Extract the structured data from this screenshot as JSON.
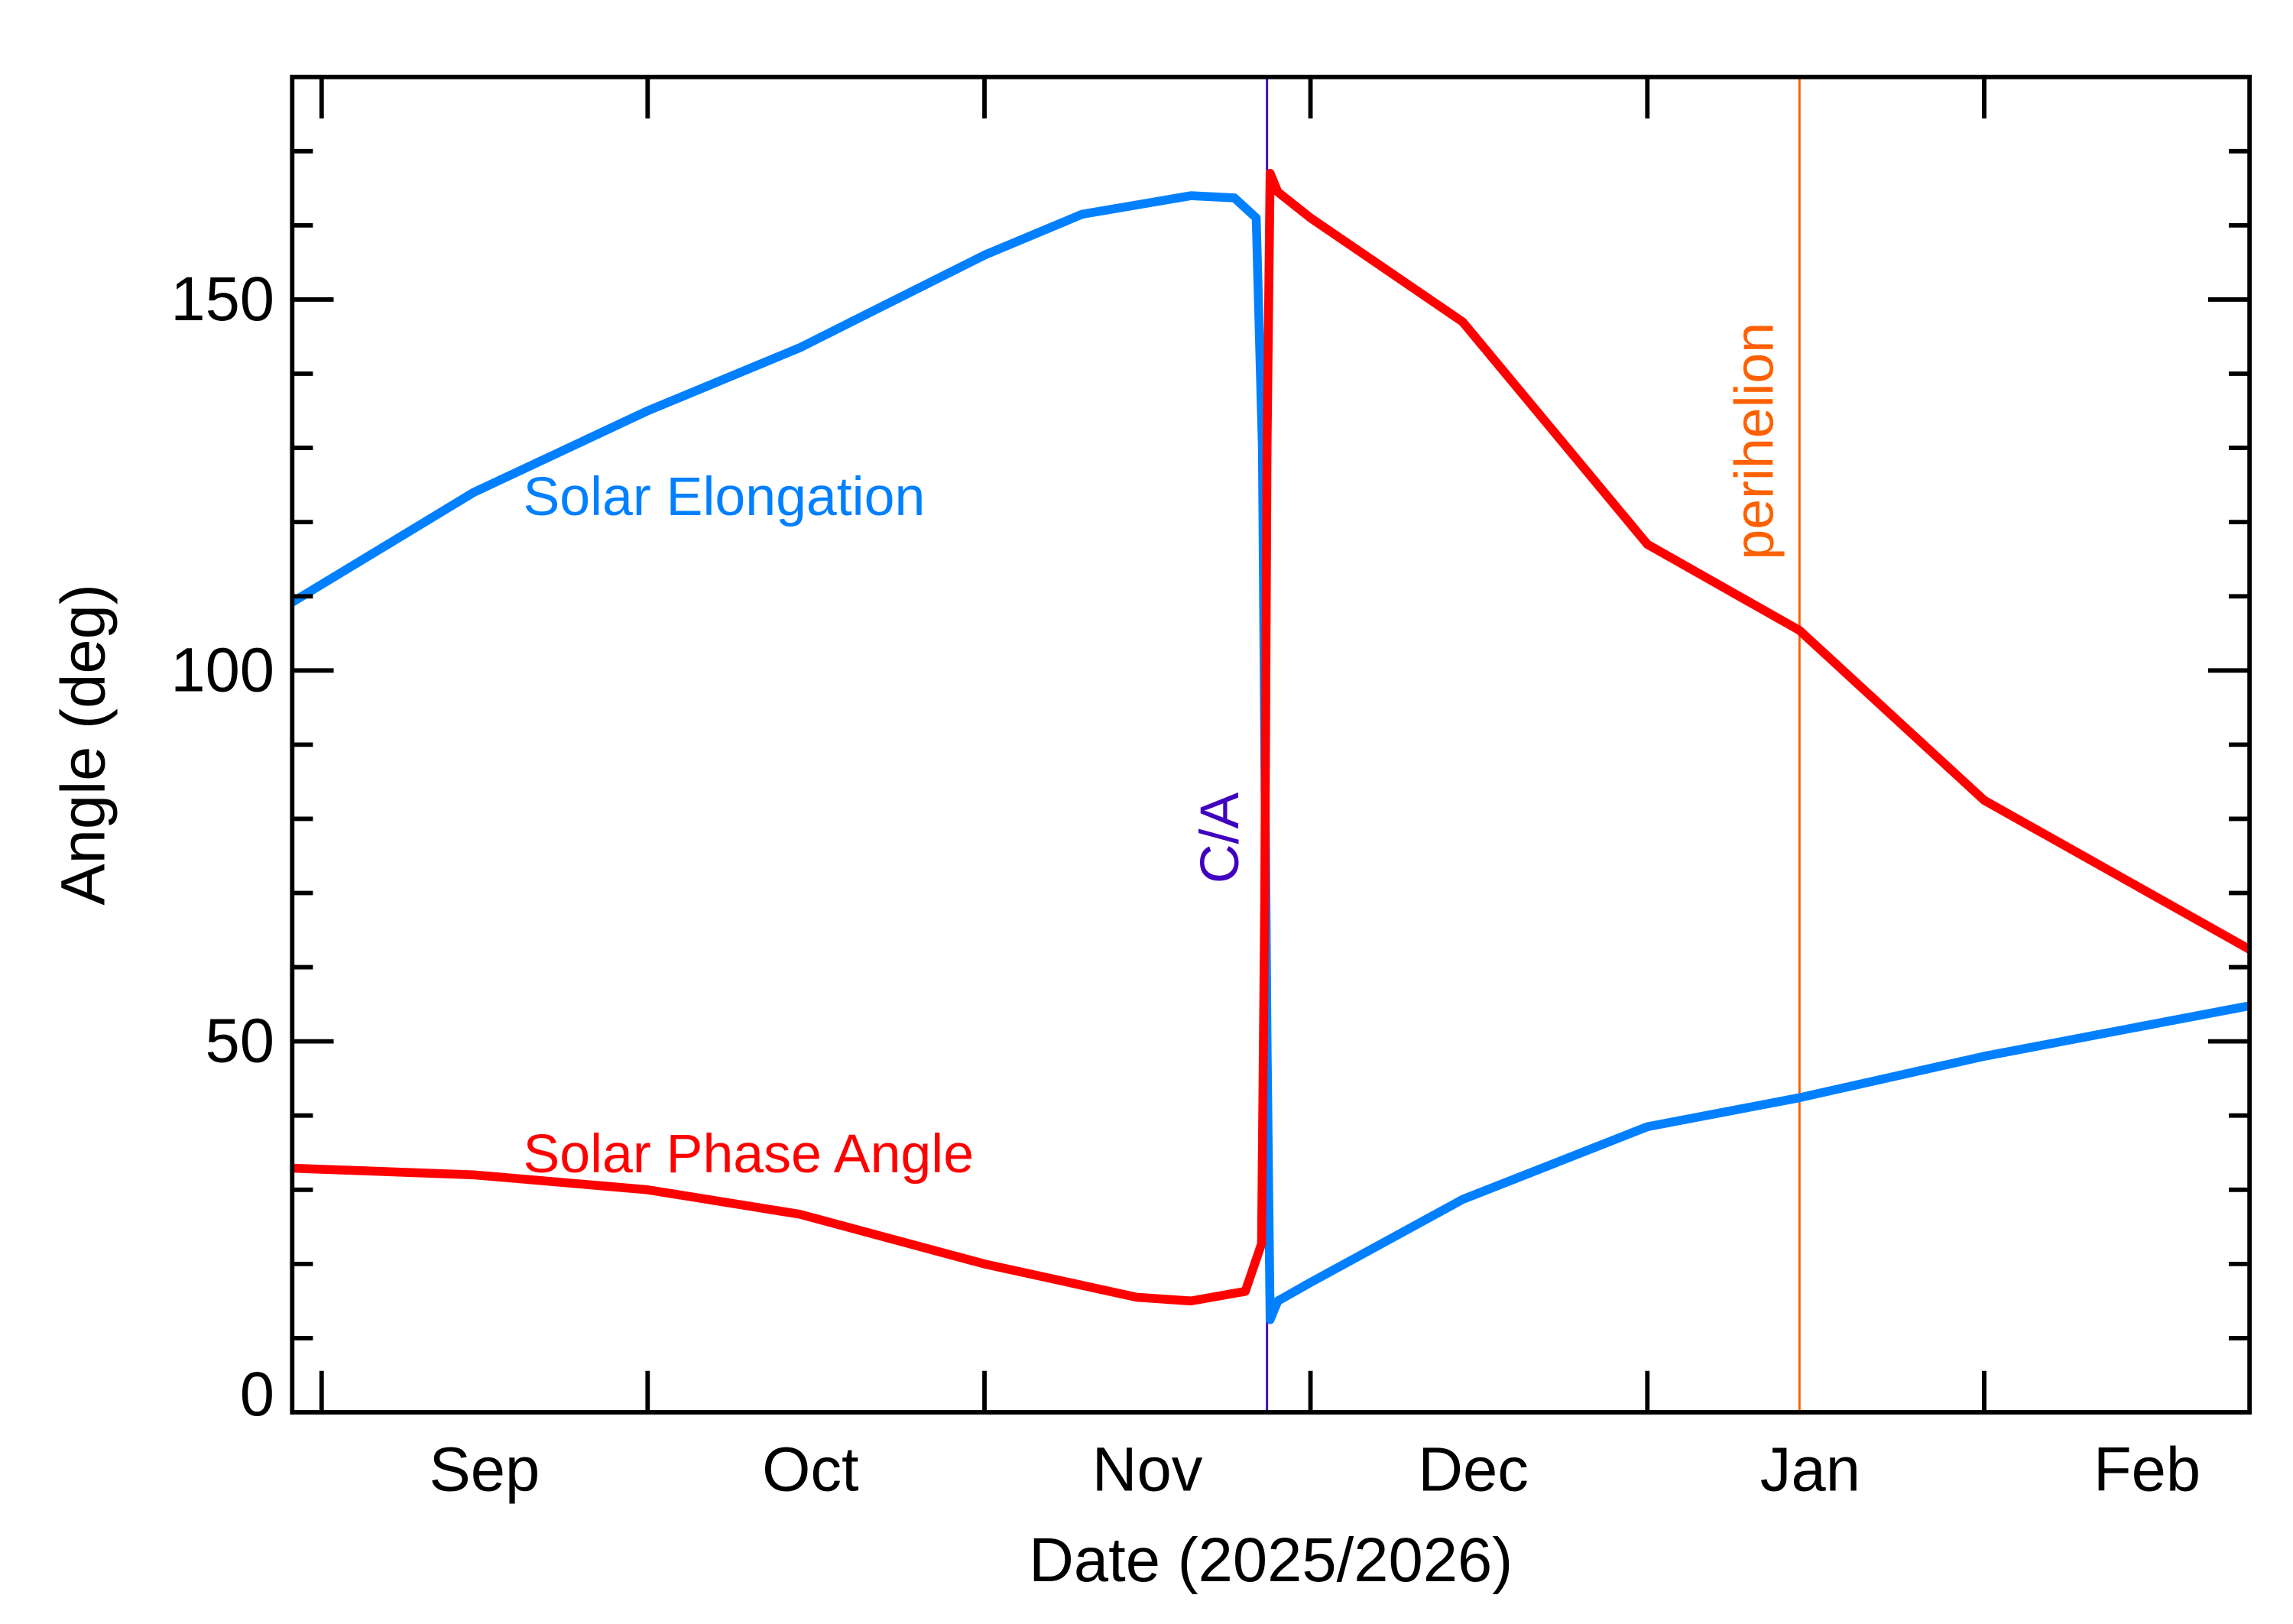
{
  "chart_data": {
    "type": "line",
    "xlabel": "Date (2025/2026)",
    "ylabel": "Angle (deg)",
    "xlim": [
      "2025-08-29T07:00",
      "2026-02-25T10:00"
    ],
    "ylim": [
      0,
      180
    ],
    "y_ticks": [
      0,
      50,
      100,
      150
    ],
    "y_minor_step": 10,
    "x_ticks": [
      "2025-09-01",
      "2025-10-01",
      "2025-11-01",
      "2025-12-01",
      "2026-01-01",
      "2026-02-01"
    ],
    "x_tick_labels": [
      "Sep",
      "Oct",
      "Nov",
      "Dec",
      "Jan",
      "Feb"
    ],
    "grid": false,
    "series": [
      {
        "name": "Solar Elongation",
        "color": "#0080FF",
        "x": [
          "2025-08-29T07:00",
          "2025-09-15",
          "2025-10-01",
          "2025-10-15",
          "2025-11-01",
          "2025-11-10",
          "2025-11-20",
          "2025-11-24",
          "2025-11-26",
          "2025-11-26T14:00",
          "2025-11-27",
          "2025-11-27T07:00",
          "2025-11-28",
          "2025-12-01",
          "2025-12-15",
          "2026-01-01",
          "2026-01-15",
          "2026-02-01",
          "2026-02-25T10:00"
        ],
        "y": [
          109.2,
          124,
          135,
          143.5,
          156,
          161.5,
          164,
          163.7,
          161,
          130,
          50,
          12.5,
          15,
          17.5,
          28.7,
          38.5,
          42.4,
          48,
          54.8
        ]
      },
      {
        "name": "Solar Phase Angle",
        "color": "#FF0000",
        "x": [
          "2025-08-29T07:00",
          "2025-09-15",
          "2025-10-01",
          "2025-10-15",
          "2025-11-01",
          "2025-11-15",
          "2025-11-20",
          "2025-11-25",
          "2025-11-26T12:00",
          "2025-11-26T19:00",
          "2025-11-27",
          "2025-11-27T07:00",
          "2025-11-28",
          "2025-12-01",
          "2025-12-15",
          "2026-01-01",
          "2026-01-15",
          "2026-02-01",
          "2026-02-25T10:00"
        ],
        "y": [
          32.9,
          32,
          30,
          26.7,
          20,
          15.5,
          15,
          16.3,
          22.7,
          70,
          130,
          167,
          164.5,
          161,
          147,
          117,
          105.4,
          82.5,
          62.4
        ]
      }
    ],
    "annotations": [
      {
        "text": "C/A",
        "date": "2025-11-27",
        "color": "#4000C0"
      },
      {
        "text": "perihelion",
        "date": "2026-01-15",
        "color": "#FF6000"
      }
    ]
  }
}
